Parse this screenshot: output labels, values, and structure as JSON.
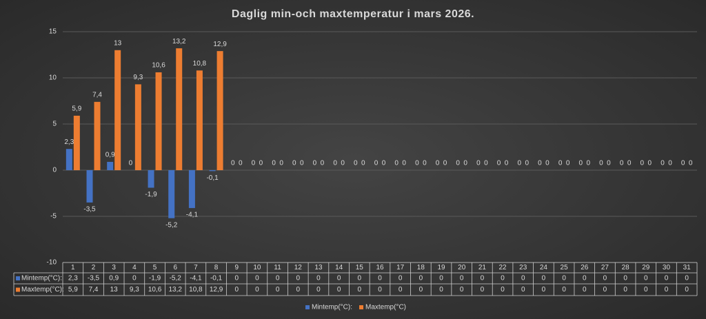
{
  "chart_data": {
    "type": "bar",
    "title": "Daglig min-och maxtemperatur i mars 2026.",
    "categories": [
      "1",
      "2",
      "3",
      "4",
      "5",
      "6",
      "7",
      "8",
      "9",
      "10",
      "11",
      "12",
      "13",
      "14",
      "15",
      "16",
      "17",
      "18",
      "19",
      "20",
      "21",
      "22",
      "23",
      "24",
      "25",
      "26",
      "27",
      "28",
      "29",
      "30",
      "31"
    ],
    "series": [
      {
        "name": "Mintemp(°C):",
        "color": "#4472c4",
        "values": [
          2.3,
          -3.5,
          0.9,
          0,
          -1.9,
          -5.2,
          -4.1,
          -0.1,
          0,
          0,
          0,
          0,
          0,
          0,
          0,
          0,
          0,
          0,
          0,
          0,
          0,
          0,
          0,
          0,
          0,
          0,
          0,
          0,
          0,
          0,
          0
        ],
        "value_labels": [
          "2,3",
          "-3,5",
          "0,9",
          "0",
          "-1,9",
          "-5,2",
          "-4,1",
          "-0,1",
          "0",
          "0",
          "0",
          "0",
          "0",
          "0",
          "0",
          "0",
          "0",
          "0",
          "0",
          "0",
          "0",
          "0",
          "0",
          "0",
          "0",
          "0",
          "0",
          "0",
          "0",
          "0",
          "0"
        ]
      },
      {
        "name": "Maxtemp(°C)",
        "color": "#ed7d31",
        "values": [
          5.9,
          7.4,
          13,
          9.3,
          10.6,
          13.2,
          10.8,
          12.9,
          0,
          0,
          0,
          0,
          0,
          0,
          0,
          0,
          0,
          0,
          0,
          0,
          0,
          0,
          0,
          0,
          0,
          0,
          0,
          0,
          0,
          0,
          0
        ],
        "value_labels": [
          "5,9",
          "7,4",
          "13",
          "9,3",
          "10,6",
          "13,2",
          "10,8",
          "12,9",
          "0",
          "0",
          "0",
          "0",
          "0",
          "0",
          "0",
          "0",
          "0",
          "0",
          "0",
          "0",
          "0",
          "0",
          "0",
          "0",
          "0",
          "0",
          "0",
          "0",
          "0",
          "0",
          "0"
        ]
      }
    ],
    "table_row_labels": [
      "Mintemp(°C):",
      "Maxtemp(°C):"
    ],
    "ylim": [
      -10,
      15
    ],
    "yticks": [
      -10,
      -5,
      0,
      5,
      10,
      15
    ],
    "grid": true,
    "legend": "bottom"
  }
}
